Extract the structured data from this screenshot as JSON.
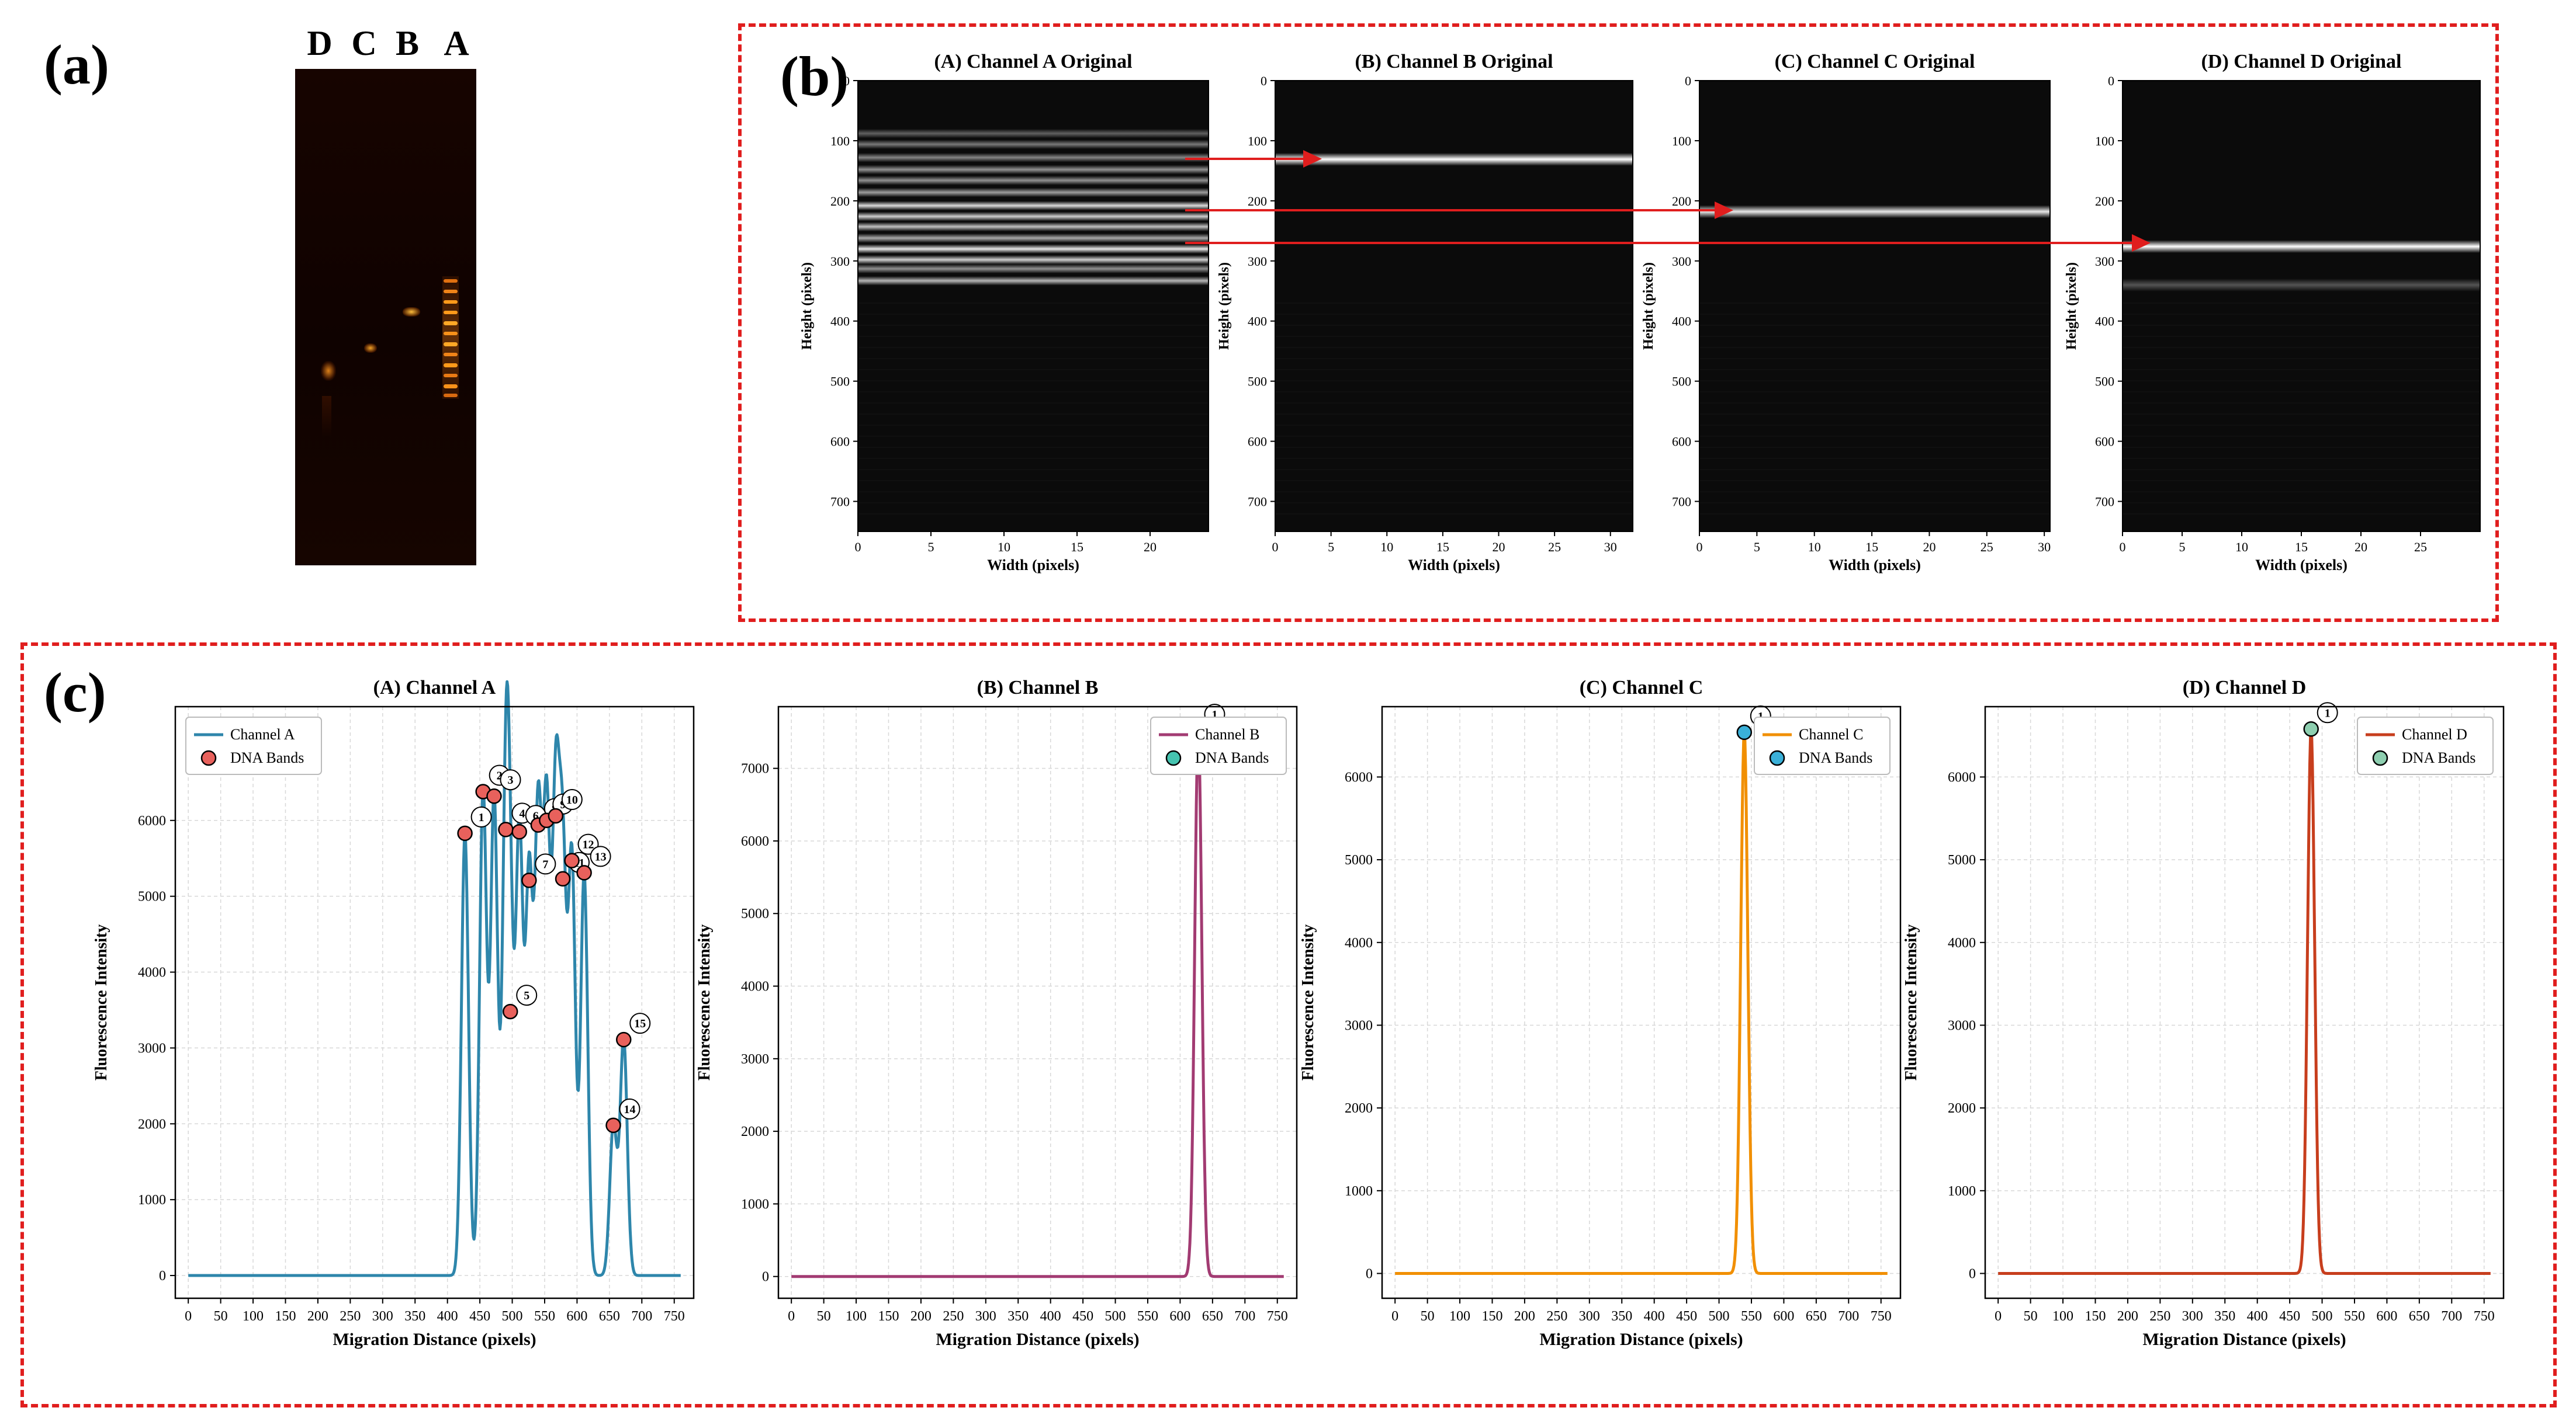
{
  "panels": {
    "a": "(a)",
    "b": "(b)",
    "c": "(c)"
  },
  "gel": {
    "lanes": [
      "D",
      "C",
      "B",
      "A"
    ],
    "accent": "#ff9a1a",
    "background": "#140300"
  },
  "original_images": [
    {
      "title": "(A) Channel A Original",
      "xlabel": "Width (pixels)",
      "ylabel": "Height (pixels)",
      "xlim": [
        0,
        24
      ],
      "xticks": [
        "0",
        "5",
        "10",
        "15",
        "20"
      ],
      "yticks": [
        "0",
        "100",
        "200",
        "300",
        "400",
        "500",
        "600",
        "700"
      ],
      "height_range": [
        0,
        750
      ],
      "bands": [
        {
          "y": 88,
          "intensity": 0.35
        },
        {
          "y": 106,
          "intensity": 0.45
        },
        {
          "y": 128,
          "intensity": 0.5
        },
        {
          "y": 148,
          "intensity": 0.55
        },
        {
          "y": 166,
          "intensity": 0.55
        },
        {
          "y": 186,
          "intensity": 0.6
        },
        {
          "y": 208,
          "intensity": 0.85
        },
        {
          "y": 226,
          "intensity": 0.8
        },
        {
          "y": 243,
          "intensity": 0.75
        },
        {
          "y": 262,
          "intensity": 0.65
        },
        {
          "y": 280,
          "intensity": 0.9
        },
        {
          "y": 298,
          "intensity": 0.8
        },
        {
          "y": 313,
          "intensity": 0.55
        },
        {
          "y": 333,
          "intensity": 0.7
        }
      ]
    },
    {
      "title": "(B) Channel B Original",
      "xlabel": "Width (pixels)",
      "ylabel": "Height (pixels)",
      "xlim": [
        0,
        32
      ],
      "xticks": [
        "0",
        "5",
        "10",
        "15",
        "20",
        "25",
        "30"
      ],
      "yticks": [
        "0",
        "100",
        "200",
        "300",
        "400",
        "500",
        "600",
        "700"
      ],
      "height_range": [
        0,
        750
      ],
      "bands": [
        {
          "y": 131,
          "intensity": 1.0
        }
      ]
    },
    {
      "title": "(C) Channel C Original",
      "xlabel": "Width (pixels)",
      "ylabel": "Height (pixels)",
      "xlim": [
        0,
        30.5
      ],
      "xticks": [
        "0",
        "5",
        "10",
        "15",
        "20",
        "25",
        "30"
      ],
      "yticks": [
        "0",
        "100",
        "200",
        "300",
        "400",
        "500",
        "600",
        "700"
      ],
      "height_range": [
        0,
        750
      ],
      "bands": [
        {
          "y": 218,
          "intensity": 0.9
        }
      ]
    },
    {
      "title": "(D) Channel D Original",
      "xlabel": "Width (pixels)",
      "ylabel": "Height (pixels)",
      "xlim": [
        0,
        30
      ],
      "xticks": [
        "0",
        "5",
        "10",
        "15",
        "20",
        "25"
      ],
      "yticks": [
        "0",
        "100",
        "200",
        "300",
        "400",
        "500",
        "600",
        "700"
      ],
      "height_range": [
        0,
        750
      ],
      "bands": [
        {
          "y": 276,
          "intensity": 1.0
        },
        {
          "y": 340,
          "intensity": 0.3
        }
      ]
    }
  ],
  "chart_data": [
    {
      "type": "line",
      "title": "(A) Channel A",
      "xlabel": "Migration Distance (pixels)",
      "ylabel": "Fluorescence Intensity",
      "xlim": [
        -20,
        780
      ],
      "ylim": [
        -300,
        7500
      ],
      "xticks": [
        0,
        50,
        100,
        150,
        200,
        250,
        300,
        350,
        400,
        450,
        500,
        550,
        600,
        650,
        700,
        750
      ],
      "yticks": [
        0,
        1000,
        2000,
        3000,
        4000,
        5000,
        6000
      ],
      "line_color": "#2e86ab",
      "marker_color": "#e8615c",
      "legend": [
        "Channel A",
        "DNA Bands"
      ],
      "peaks": [
        {
          "label": "1",
          "x": 427,
          "y": 5830
        },
        {
          "label": "2",
          "x": 455,
          "y": 6380
        },
        {
          "label": "3",
          "x": 472,
          "y": 6320
        },
        {
          "label": "4",
          "x": 490,
          "y": 5880
        },
        {
          "label": "5",
          "x": 497,
          "y": 3480
        },
        {
          "label": "6",
          "x": 511,
          "y": 5850
        },
        {
          "label": "7",
          "x": 526,
          "y": 5210
        },
        {
          "label": "8",
          "x": 540,
          "y": 5940
        },
        {
          "label": "9",
          "x": 553,
          "y": 6000
        },
        {
          "label": "10",
          "x": 567,
          "y": 6060
        },
        {
          "label": "11",
          "x": 578,
          "y": 5230
        },
        {
          "label": "12",
          "x": 592,
          "y": 5470
        },
        {
          "label": "13",
          "x": 611,
          "y": 5310
        },
        {
          "label": "14",
          "x": 656,
          "y": 1980
        },
        {
          "label": "15",
          "x": 672,
          "y": 3110
        }
      ]
    },
    {
      "type": "line",
      "title": "(B) Channel B",
      "xlabel": "Migration Distance (pixels)",
      "ylabel": "Fluorescence Intensity",
      "xlim": [
        -20,
        780
      ],
      "ylim": [
        -300,
        7850
      ],
      "xticks": [
        0,
        50,
        100,
        150,
        200,
        250,
        300,
        350,
        400,
        450,
        500,
        550,
        600,
        650,
        700,
        750
      ],
      "yticks": [
        0,
        1000,
        2000,
        3000,
        4000,
        5000,
        6000,
        7000
      ],
      "line_color": "#a23b72",
      "marker_color": "#45c4b0",
      "legend": [
        "Channel B",
        "DNA Bands"
      ],
      "peaks": [
        {
          "label": "1",
          "x": 628,
          "y": 7520
        }
      ]
    },
    {
      "type": "line",
      "title": "(C) Channel C",
      "xlabel": "Migration Distance (pixels)",
      "ylabel": "Fluorescence Intensity",
      "xlim": [
        -20,
        780
      ],
      "ylim": [
        -300,
        6850
      ],
      "xticks": [
        0,
        50,
        100,
        150,
        200,
        250,
        300,
        350,
        400,
        450,
        500,
        550,
        600,
        650,
        700,
        750
      ],
      "yticks": [
        0,
        1000,
        2000,
        3000,
        4000,
        5000,
        6000
      ],
      "line_color": "#f18f01",
      "marker_color": "#3ab0d8",
      "legend": [
        "Channel C",
        "DNA Bands"
      ],
      "peaks": [
        {
          "label": "1",
          "x": 539,
          "y": 6540
        }
      ]
    },
    {
      "type": "line",
      "title": "(D) Channel D",
      "xlabel": "Migration Distance (pixels)",
      "ylabel": "Fluorescence Intensity",
      "xlim": [
        -20,
        780
      ],
      "ylim": [
        -300,
        6850
      ],
      "xticks": [
        0,
        50,
        100,
        150,
        200,
        250,
        300,
        350,
        400,
        450,
        500,
        550,
        600,
        650,
        700,
        750
      ],
      "yticks": [
        0,
        1000,
        2000,
        3000,
        4000,
        5000,
        6000
      ],
      "line_color": "#c73e1d",
      "marker_color": "#8ecfb0",
      "legend": [
        "Channel D",
        "DNA Bands"
      ],
      "peaks": [
        {
          "label": "1",
          "x": 483,
          "y": 6580
        }
      ]
    }
  ]
}
